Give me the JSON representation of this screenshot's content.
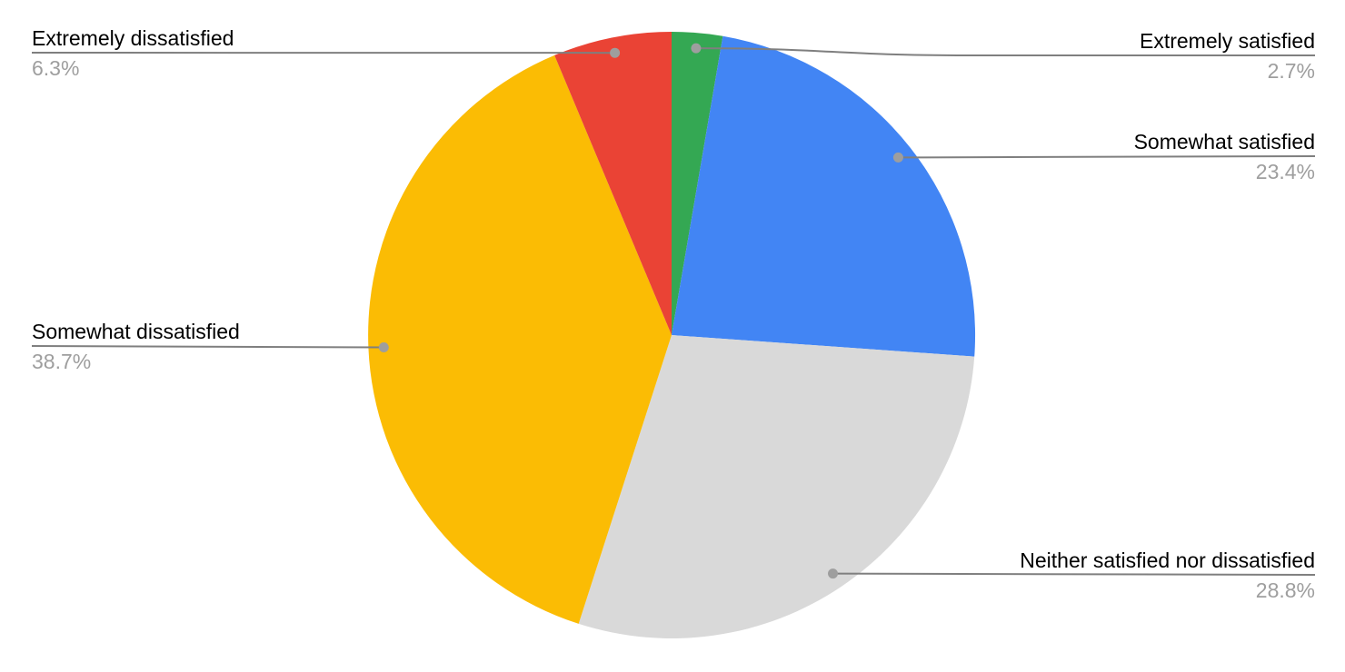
{
  "chart_data": {
    "type": "pie",
    "title": "",
    "direction": "clockwise",
    "start_angle_deg": 0,
    "legend_position": "outside-callouts",
    "background": "#ffffff",
    "slices": [
      {
        "label": "Extremely satisfied",
        "value": 2.7,
        "percent": "2.7%",
        "color": "#34A853"
      },
      {
        "label": "Somewhat satisfied",
        "value": 23.4,
        "percent": "23.4%",
        "color": "#4285F4"
      },
      {
        "label": "Neither satisfied nor dissatisfied",
        "value": 28.8,
        "percent": "28.8%",
        "color": "#D9D9D9"
      },
      {
        "label": "Somewhat dissatisfied",
        "value": 38.7,
        "percent": "38.7%",
        "color": "#FBBC04"
      },
      {
        "label": "Extremely dissatisfied",
        "value": 6.3,
        "percent": "6.3%",
        "color": "#EA4335"
      }
    ],
    "label_style": {
      "name_color": "#000000",
      "percent_color": "#9e9e9e",
      "leader_color": "#7f7f7f",
      "dot_color": "#9e9e9e"
    }
  }
}
